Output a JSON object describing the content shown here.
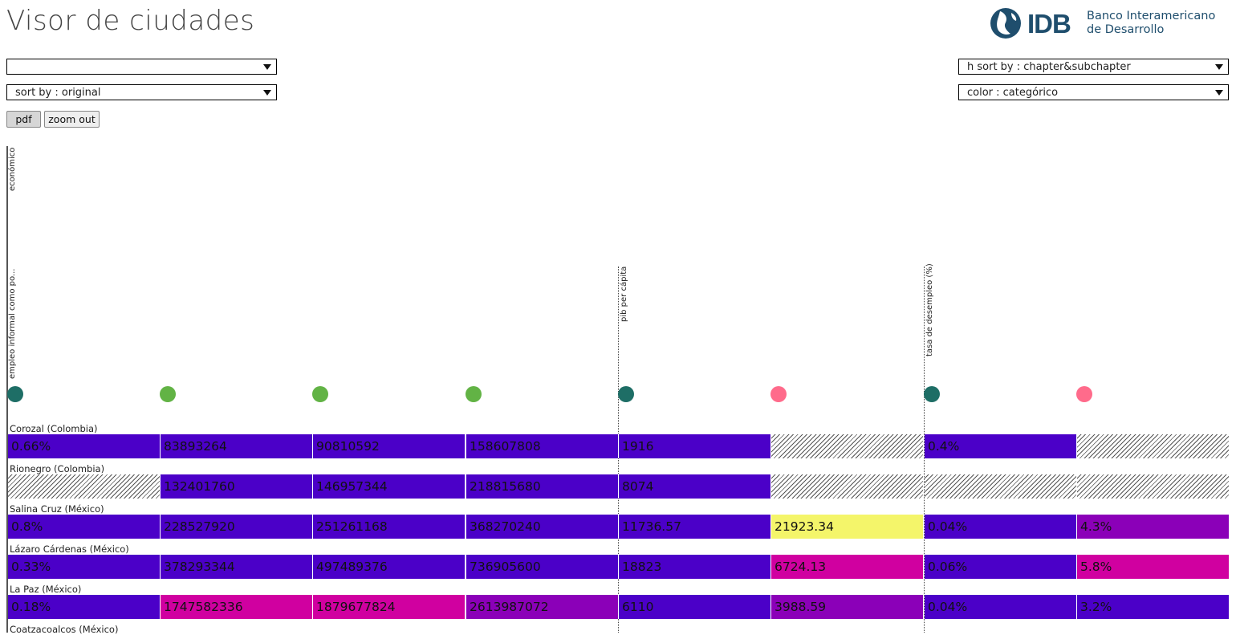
{
  "header": {
    "title": "Visor de ciudades"
  },
  "logo": {
    "abbr": "IDB",
    "line1": "Banco Interamericano",
    "line2": "de Desarrollo",
    "color": "#1f4e6d"
  },
  "controls": {
    "select_top_left": "",
    "sort_by": "sort by : original",
    "h_sort_by": "h sort by : chapter&subchapter",
    "color": "color : categórico",
    "pdf_label": "pdf",
    "zoom_out_label": "zoom out"
  },
  "chapter_label": "económico",
  "column_labels": [
    "empleo informal como po...",
    "pib per cápita",
    "tasa de desempleo (%)"
  ],
  "columns": [
    {
      "dot": "#1e6e66"
    },
    {
      "dot": "#62b345"
    },
    {
      "dot": "#62b345"
    },
    {
      "dot": "#62b345"
    },
    {
      "dot": "#1e6e66"
    },
    {
      "dot": "#ff6b8b"
    },
    {
      "dot": "#1e6e66"
    },
    {
      "dot": "#ff6b8b"
    }
  ],
  "palette": {
    "indigo": "#4b00c8",
    "purple": "#8b00b8",
    "magenta": "#d000a0",
    "yellow": "#f4f56a",
    "na": "hatch"
  },
  "rows": [
    {
      "city": "Corozal (Colombia)",
      "cells": [
        {
          "v": "0.66%",
          "c": "indigo"
        },
        {
          "v": "83893264",
          "c": "indigo"
        },
        {
          "v": "90810592",
          "c": "indigo"
        },
        {
          "v": "158607808",
          "c": "indigo"
        },
        {
          "v": "1916",
          "c": "indigo"
        },
        {
          "v": "",
          "c": "na"
        },
        {
          "v": "0.4%",
          "c": "indigo"
        },
        {
          "v": "",
          "c": "na"
        }
      ]
    },
    {
      "city": "Rionegro (Colombia)",
      "cells": [
        {
          "v": "",
          "c": "na"
        },
        {
          "v": "132401760",
          "c": "indigo"
        },
        {
          "v": "146957344",
          "c": "indigo"
        },
        {
          "v": "218815680",
          "c": "indigo"
        },
        {
          "v": "8074",
          "c": "indigo"
        },
        {
          "v": "",
          "c": "na"
        },
        {
          "v": "",
          "c": "na"
        },
        {
          "v": "",
          "c": "na"
        }
      ]
    },
    {
      "city": "Salina Cruz (México)",
      "cells": [
        {
          "v": "0.8%",
          "c": "indigo"
        },
        {
          "v": "228527920",
          "c": "indigo"
        },
        {
          "v": "251261168",
          "c": "indigo"
        },
        {
          "v": "368270240",
          "c": "indigo"
        },
        {
          "v": "11736.57",
          "c": "indigo"
        },
        {
          "v": "21923.34",
          "c": "yellow"
        },
        {
          "v": "0.04%",
          "c": "indigo"
        },
        {
          "v": "4.3%",
          "c": "purple"
        }
      ]
    },
    {
      "city": "Lázaro Cárdenas (México)",
      "cells": [
        {
          "v": "0.33%",
          "c": "indigo"
        },
        {
          "v": "378293344",
          "c": "indigo"
        },
        {
          "v": "497489376",
          "c": "indigo"
        },
        {
          "v": "736905600",
          "c": "indigo"
        },
        {
          "v": "18823",
          "c": "indigo"
        },
        {
          "v": "6724.13",
          "c": "magenta"
        },
        {
          "v": "0.06%",
          "c": "indigo"
        },
        {
          "v": "5.8%",
          "c": "magenta"
        }
      ]
    },
    {
      "city": "La Paz (México)",
      "cells": [
        {
          "v": "0.18%",
          "c": "indigo"
        },
        {
          "v": "1747582336",
          "c": "magenta"
        },
        {
          "v": "1879677824",
          "c": "magenta"
        },
        {
          "v": "2613987072",
          "c": "purple"
        },
        {
          "v": "6110",
          "c": "indigo"
        },
        {
          "v": "3988.59",
          "c": "purple"
        },
        {
          "v": "0.04%",
          "c": "indigo"
        },
        {
          "v": "3.2%",
          "c": "indigo"
        }
      ]
    },
    {
      "city": "Coatzacoalcos (México)",
      "cells": []
    }
  ]
}
